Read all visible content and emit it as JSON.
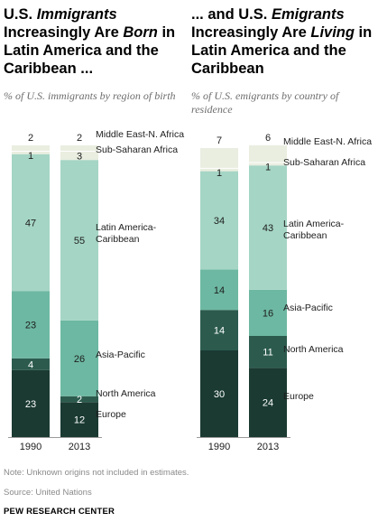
{
  "left_panel": {
    "title_pre": "U.S. ",
    "title_em1": "Immigrants",
    "title_mid": " Increasingly Are ",
    "title_em2": "Born",
    "title_post": " in Latin America and the Caribbean ...",
    "subtitle": "% of U.S. immigrants by region of birth"
  },
  "right_panel": {
    "title_pre": "... and U.S. ",
    "title_em1": "Emigrants",
    "title_mid": " Increasingly Are ",
    "title_em2": "Living",
    "title_post": " in Latin America and the Caribbean",
    "subtitle": "% of U.S. emigrants by country of residence"
  },
  "colors": {
    "Europe": "#1a3a32",
    "North America": "#2c5b4e",
    "Asia-Pacific": "#6db8a2",
    "Latin America-Caribbean": "#a5d5c5",
    "Sub-Saharan Africa": "#e9eee0",
    "Middle East-N. Africa": "#e9eee0",
    "divider": "#ffffff"
  },
  "chart_data": [
    {
      "type": "bar",
      "stacked": true,
      "categories": [
        "1990",
        "2013"
      ],
      "series": [
        {
          "name": "Europe",
          "values": [
            23,
            12
          ]
        },
        {
          "name": "North America",
          "values": [
            4,
            2
          ]
        },
        {
          "name": "Asia-Pacific",
          "values": [
            23,
            26
          ]
        },
        {
          "name": "Latin America-Caribbean",
          "values": [
            47,
            55
          ]
        },
        {
          "name": "Sub-Saharan Africa",
          "values": [
            1,
            3
          ]
        },
        {
          "name": "Middle East-N. Africa",
          "values": [
            2,
            2
          ]
        }
      ],
      "legend_labels": [
        "Middle East-N. Africa",
        "Sub-Saharan Africa",
        "Latin America-\nCaribbean",
        "Asia-Pacific",
        "North America",
        "Europe"
      ],
      "ylim": [
        0,
        100
      ]
    },
    {
      "type": "bar",
      "stacked": true,
      "categories": [
        "1990",
        "2013"
      ],
      "series": [
        {
          "name": "Europe",
          "values": [
            30,
            24
          ]
        },
        {
          "name": "North America",
          "values": [
            14,
            11
          ]
        },
        {
          "name": "Asia-Pacific",
          "values": [
            14,
            16
          ]
        },
        {
          "name": "Latin America-Caribbean",
          "values": [
            34,
            43
          ]
        },
        {
          "name": "Sub-Saharan Africa",
          "values": [
            1,
            1
          ]
        },
        {
          "name": "Middle East-N. Africa",
          "values": [
            7,
            6
          ]
        }
      ],
      "legend_labels": [
        "Middle East-N. Africa",
        "Sub-Saharan Africa",
        "Latin America-\nCaribbean",
        "Asia-Pacific",
        "North America",
        "Europe"
      ],
      "ylim": [
        0,
        100
      ]
    }
  ],
  "footer": {
    "note": "Note: Unknown origins not included in estimates.",
    "source": "Source: United Nations",
    "brand": "PEW RESEARCH CENTER"
  }
}
